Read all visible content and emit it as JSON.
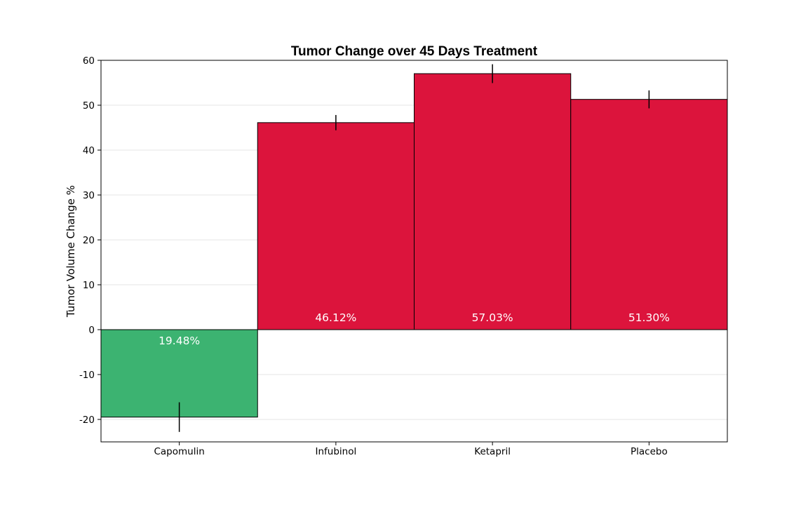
{
  "chart_data": {
    "type": "bar",
    "title": "Tumor Change over 45 Days Treatment",
    "xlabel": "",
    "ylabel": "Tumor Volume Change %",
    "categories": [
      "Capomulin",
      "Infubinol",
      "Ketapril",
      "Placebo"
    ],
    "values": [
      -19.48,
      46.12,
      57.03,
      51.3
    ],
    "errors": [
      3.3,
      1.7,
      2.1,
      2.0
    ],
    "data_labels": [
      "19.48%",
      "46.12%",
      "57.03%",
      "51.30%"
    ],
    "ylim": [
      -25,
      60
    ],
    "yticks": [
      -20,
      -10,
      0,
      10,
      20,
      30,
      40,
      50,
      60
    ],
    "grid": "horizontal",
    "colors": {
      "positive": "#dc143c",
      "negative": "#3cb371",
      "edge": "#000000",
      "grid": "#e6e6e6"
    }
  }
}
